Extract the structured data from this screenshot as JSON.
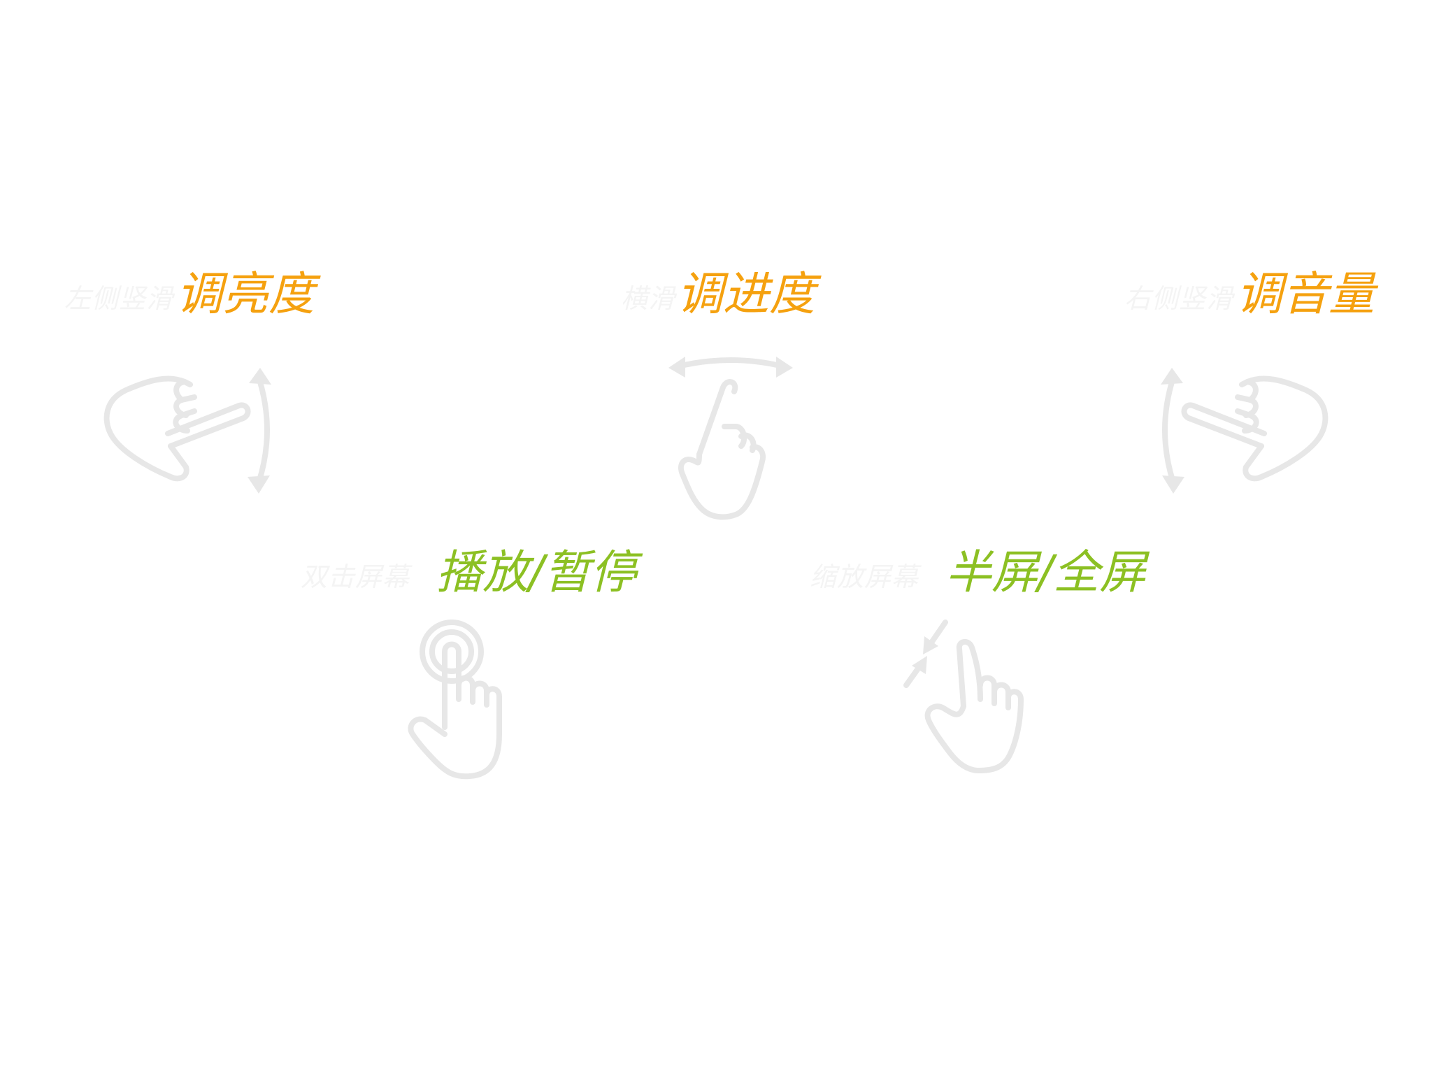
{
  "colors": {
    "adjust": "#f5a10f",
    "toggle": "#8cc023",
    "hint": "#f4f4f4",
    "icon": "#e7e7e7"
  },
  "gestures": {
    "brightness": {
      "hint": "左侧竖滑",
      "action": "调亮度",
      "icon": "hand-pointing-left-vertical-swipe-icon"
    },
    "progress": {
      "hint": "横滑",
      "action": "调进度",
      "icon": "hand-pointing-up-horizontal-swipe-icon"
    },
    "volume": {
      "hint": "右侧竖滑",
      "action": "调音量",
      "icon": "hand-pointing-right-vertical-swipe-icon"
    },
    "play_pause": {
      "hint": "双击屏幕",
      "action": "播放/暂停",
      "icon": "hand-double-tap-icon"
    },
    "fullscreen": {
      "hint": "缩放屏幕",
      "action": "半屏/全屏",
      "icon": "hand-pinch-zoom-icon"
    }
  }
}
